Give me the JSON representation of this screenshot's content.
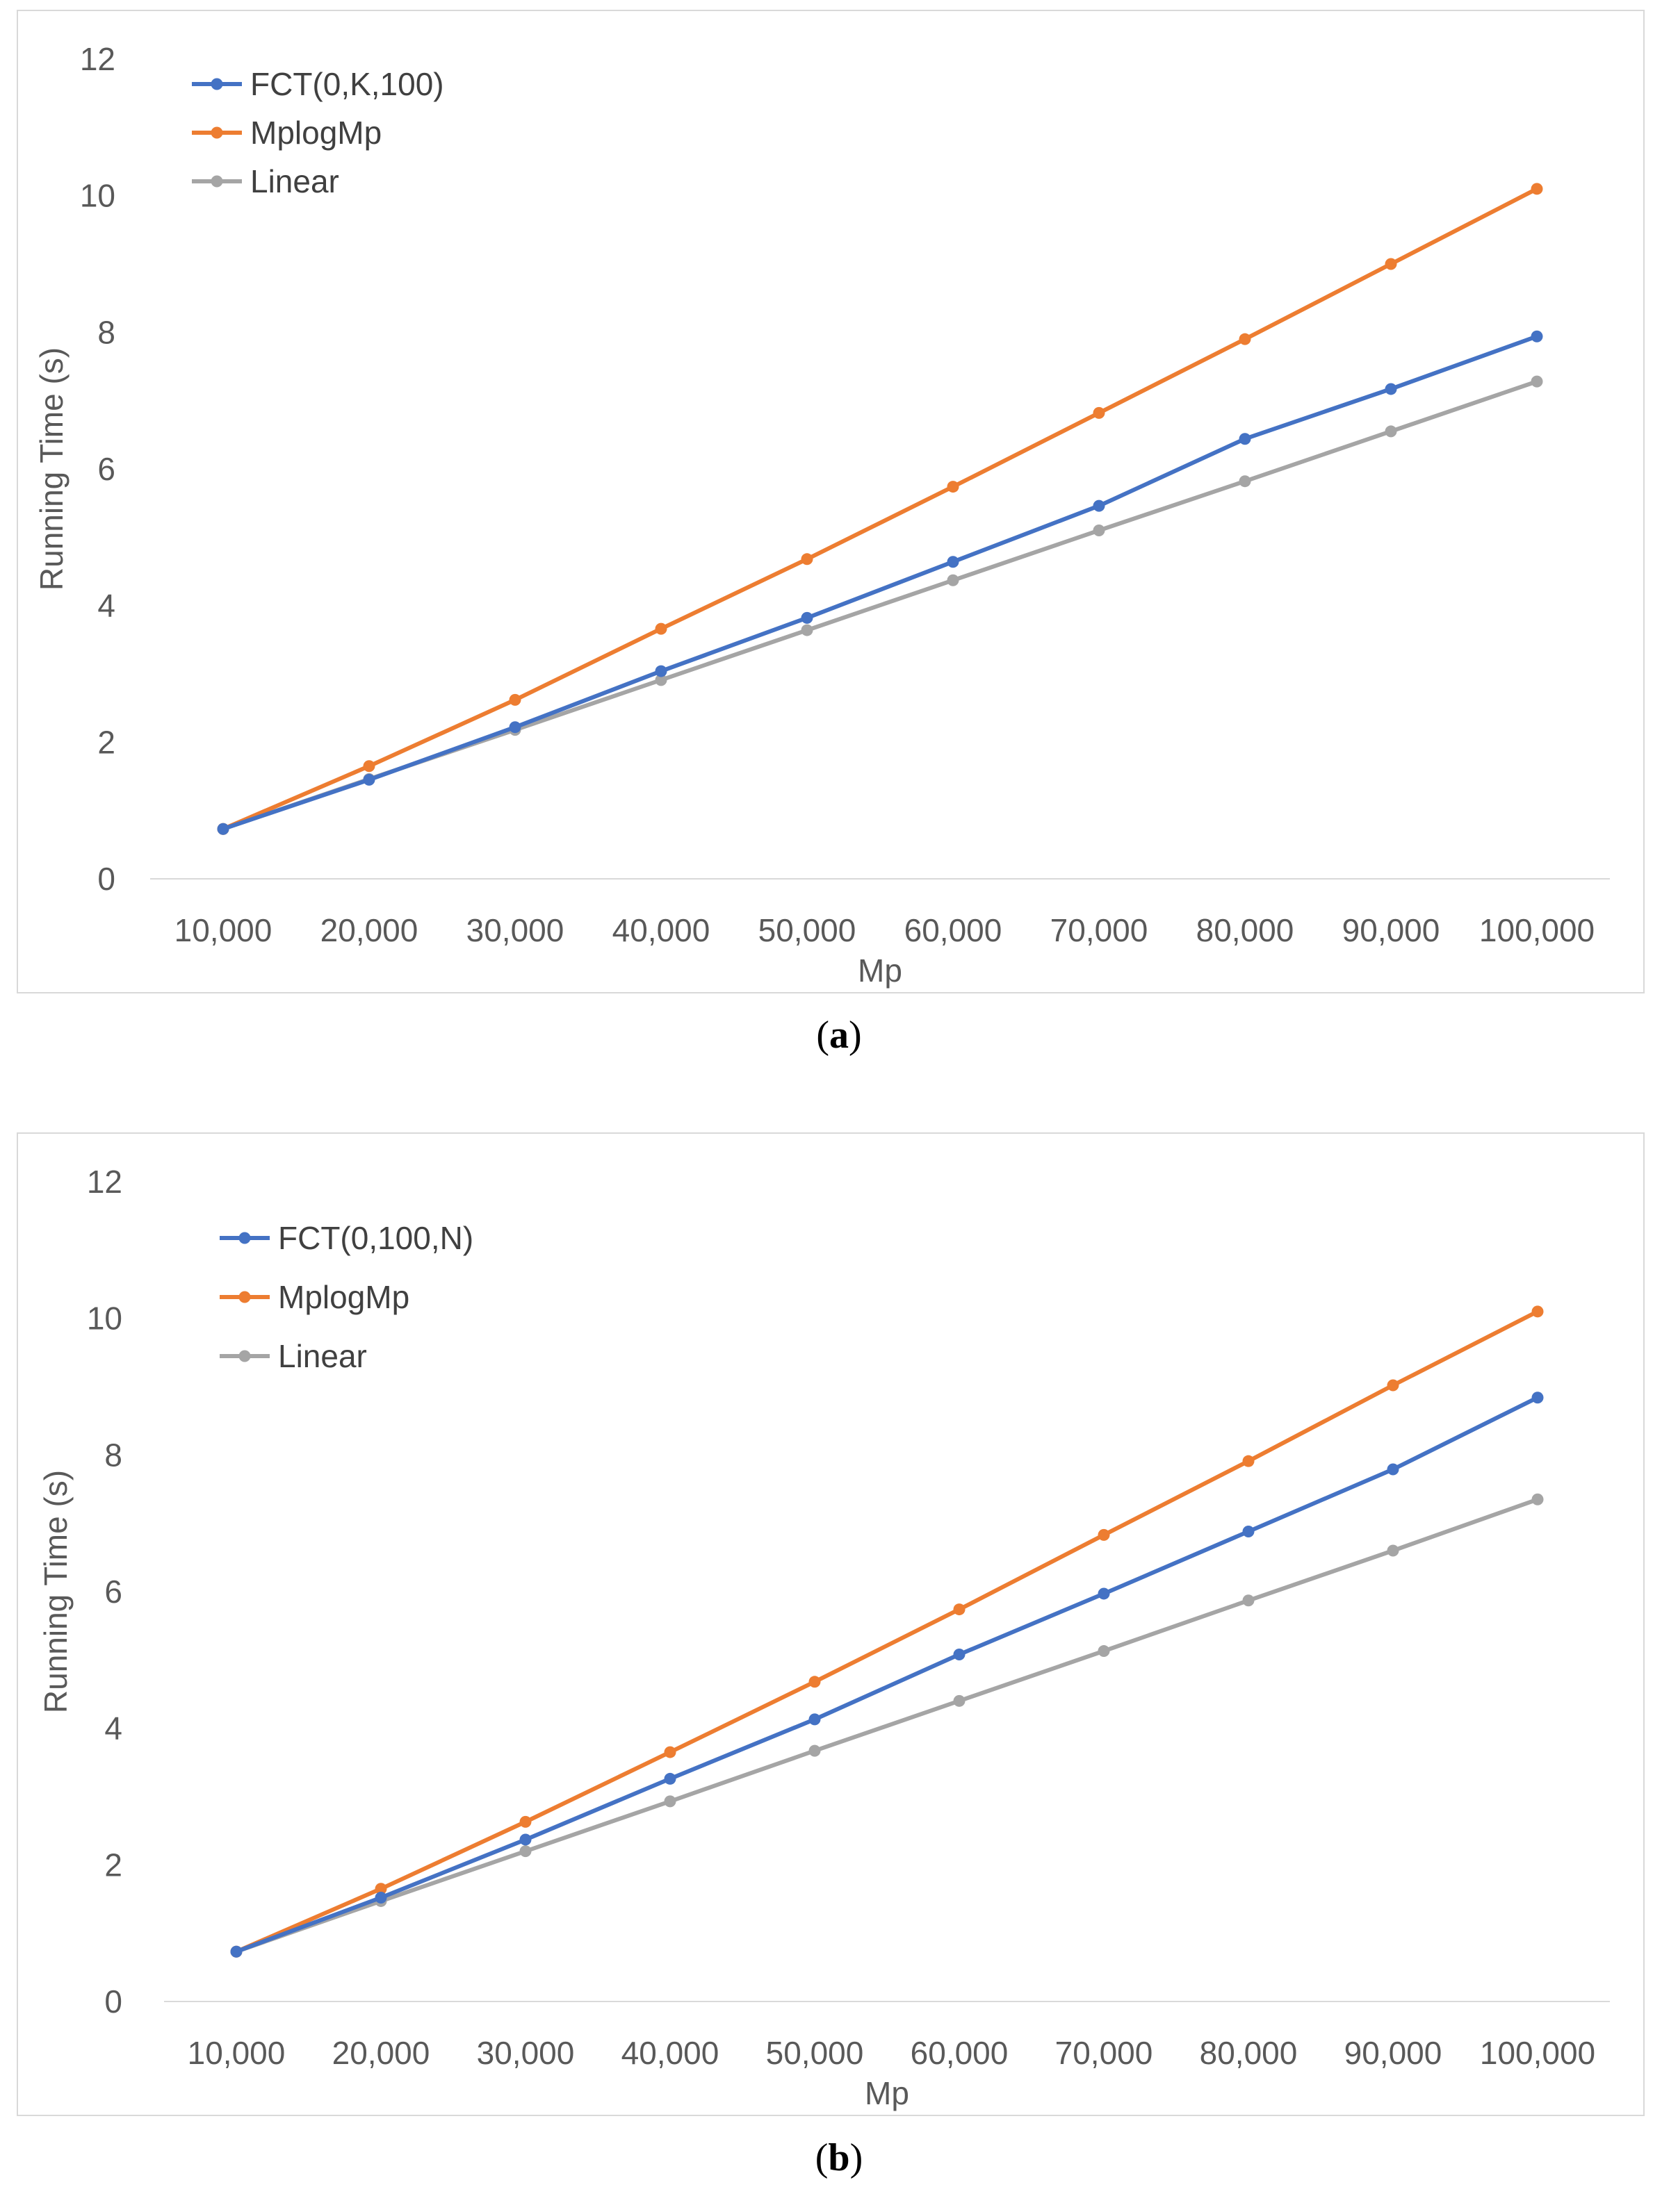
{
  "chart_data": [
    {
      "type": "line",
      "panel_label": "a",
      "title": "",
      "xlabel": "Mp",
      "ylabel": "Running Time (s)",
      "ylim": [
        0,
        12
      ],
      "yticks": [
        "0",
        "2",
        "4",
        "6",
        "8",
        "10",
        "12"
      ],
      "categories": [
        "10,000",
        "20,000",
        "30,000",
        "40,000",
        "50,000",
        "60,000",
        "70,000",
        "80,000",
        "90,000",
        "100,000"
      ],
      "legend_position": "top-left",
      "grid": false,
      "series": [
        {
          "name": "FCT(0,K,100)",
          "color": "#4472c4",
          "values": [
            0.73,
            1.45,
            2.22,
            3.04,
            3.82,
            4.64,
            5.46,
            6.44,
            7.17,
            7.94
          ]
        },
        {
          "name": "MplogMp",
          "color": "#ed7d31",
          "values": [
            0.73,
            1.65,
            2.62,
            3.66,
            4.68,
            5.74,
            6.82,
            7.9,
            9.0,
            10.1
          ]
        },
        {
          "name": "Linear",
          "color": "#a5a5a5",
          "values": [
            0.73,
            1.46,
            2.18,
            2.91,
            3.64,
            4.37,
            5.1,
            5.82,
            6.55,
            7.28
          ]
        }
      ]
    },
    {
      "type": "line",
      "panel_label": "b",
      "title": "",
      "xlabel": "Mp",
      "ylabel": "Running Time (s)",
      "ylim": [
        0,
        12
      ],
      "yticks": [
        "0",
        "2",
        "4",
        "6",
        "8",
        "10",
        "12"
      ],
      "categories": [
        "10,000",
        "20,000",
        "30,000",
        "40,000",
        "50,000",
        "60,000",
        "70,000",
        "80,000",
        "90,000",
        "100,000"
      ],
      "legend_position": "top-left",
      "grid": false,
      "series": [
        {
          "name": "FCT(0,100,N)",
          "color": "#4472c4",
          "values": [
            0.73,
            1.52,
            2.37,
            3.26,
            4.13,
            5.08,
            5.97,
            6.88,
            7.79,
            8.84
          ]
        },
        {
          "name": "MplogMp",
          "color": "#ed7d31",
          "values": [
            0.73,
            1.65,
            2.63,
            3.65,
            4.68,
            5.74,
            6.83,
            7.91,
            9.02,
            10.1
          ]
        },
        {
          "name": "Linear",
          "color": "#a5a5a5",
          "values": [
            0.73,
            1.47,
            2.2,
            2.93,
            3.67,
            4.4,
            5.13,
            5.87,
            6.6,
            7.35
          ]
        }
      ]
    }
  ],
  "captions": [
    {
      "open": "(",
      "label": "a",
      "close": ")"
    },
    {
      "open": "(",
      "label": "b",
      "close": ")"
    }
  ]
}
